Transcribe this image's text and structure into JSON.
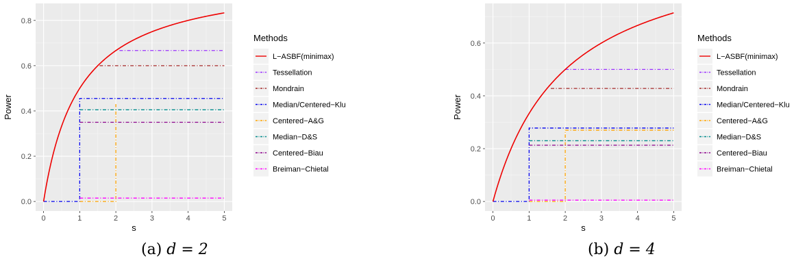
{
  "legend": {
    "title": "Methods",
    "entries": [
      {
        "name": "L−ASBF(minimax)",
        "color": "#ee0000",
        "dash": "solid"
      },
      {
        "name": "Tessellation",
        "color": "#9b30ff",
        "dash": "dashdot"
      },
      {
        "name": "Mondrain",
        "color": "#a52a2a",
        "dash": "dashdot"
      },
      {
        "name": "Median/Centered−Klu",
        "color": "#0000ee",
        "dash": "dashdot"
      },
      {
        "name": "Centered−A&G",
        "color": "#ffa500",
        "dash": "dashdot"
      },
      {
        "name": "Median−D&S",
        "color": "#008b8b",
        "dash": "dashdot"
      },
      {
        "name": "Centered−Biau",
        "color": "#8b008b",
        "dash": "dashdot"
      },
      {
        "name": "Breiman−Chietal",
        "color": "#ff00ff",
        "dash": "dashdot"
      }
    ]
  },
  "chart_data": [
    {
      "type": "line",
      "caption_prefix": "(a) ",
      "caption_math": "d = 2",
      "xlabel": "s",
      "ylabel": "Power",
      "xlim": [
        -0.22,
        5.22
      ],
      "ylim": [
        -0.042,
        0.875
      ],
      "xticks": [
        0,
        1,
        2,
        3,
        4,
        5
      ],
      "yticks": [
        0.0,
        0.2,
        0.4,
        0.6,
        0.8
      ],
      "ytick_labels": [
        "0.0",
        "0.2",
        "0.4",
        "0.6",
        "0.8"
      ],
      "grid": true,
      "legend_position": "right",
      "series": [
        {
          "name": "L−ASBF(minimax)",
          "curve": {
            "a": 1,
            "c": 1
          },
          "x_range": [
            0,
            5
          ]
        },
        {
          "name": "Tessellation",
          "x": [
            2.1,
            5
          ],
          "y": [
            0.667,
            0.667
          ]
        },
        {
          "name": "Mondrain",
          "x": [
            1.55,
            5
          ],
          "y": [
            0.6,
            0.6
          ]
        },
        {
          "name": "Median/Centered−Klu",
          "x": [
            0,
            1,
            1,
            5
          ],
          "y": [
            0.0,
            0.0,
            0.455,
            0.455
          ]
        },
        {
          "name": "Centered−A&G",
          "x": [
            1,
            2,
            2
          ],
          "y": [
            0.0,
            0.0,
            0.43
          ]
        },
        {
          "name": "Median−D&S",
          "x": [
            1,
            5
          ],
          "y": [
            0.405,
            0.405
          ]
        },
        {
          "name": "Centered−Biau",
          "x": [
            1,
            5
          ],
          "y": [
            0.35,
            0.35
          ]
        },
        {
          "name": "Breiman−Chietal",
          "x": [
            1,
            5
          ],
          "y": [
            0.015,
            0.015
          ]
        }
      ]
    },
    {
      "type": "line",
      "caption_prefix": "(b) ",
      "caption_math": "d = 4",
      "xlabel": "s",
      "ylabel": "Power",
      "xlim": [
        -0.22,
        5.22
      ],
      "ylim": [
        -0.036,
        0.75
      ],
      "xticks": [
        0,
        1,
        2,
        3,
        4,
        5
      ],
      "yticks": [
        0.0,
        0.2,
        0.4,
        0.6
      ],
      "ytick_labels": [
        "0.0",
        "0.2",
        "0.4",
        "0.6"
      ],
      "grid": true,
      "legend_position": "right",
      "series": [
        {
          "name": "L−ASBF(minimax)",
          "curve": {
            "a": 1,
            "c": 2
          },
          "x_range": [
            0,
            5
          ]
        },
        {
          "name": "Tessellation",
          "x": [
            2,
            5
          ],
          "y": [
            0.5,
            0.5
          ]
        },
        {
          "name": "Mondrain",
          "x": [
            1.6,
            5
          ],
          "y": [
            0.428,
            0.428
          ]
        },
        {
          "name": "Median/Centered−Klu",
          "x": [
            0,
            1,
            1,
            5
          ],
          "y": [
            0.0,
            0.0,
            0.278,
            0.278
          ]
        },
        {
          "name": "Centered−A&G",
          "x": [
            1,
            2,
            2,
            5
          ],
          "y": [
            0.0,
            0.0,
            0.27,
            0.27
          ]
        },
        {
          "name": "Median−D&S",
          "x": [
            1,
            5
          ],
          "y": [
            0.23,
            0.23
          ]
        },
        {
          "name": "Centered−Biau",
          "x": [
            1,
            5
          ],
          "y": [
            0.213,
            0.213
          ]
        },
        {
          "name": "Breiman−Chietal",
          "x": [
            1,
            5
          ],
          "y": [
            0.005,
            0.005
          ]
        }
      ]
    }
  ]
}
